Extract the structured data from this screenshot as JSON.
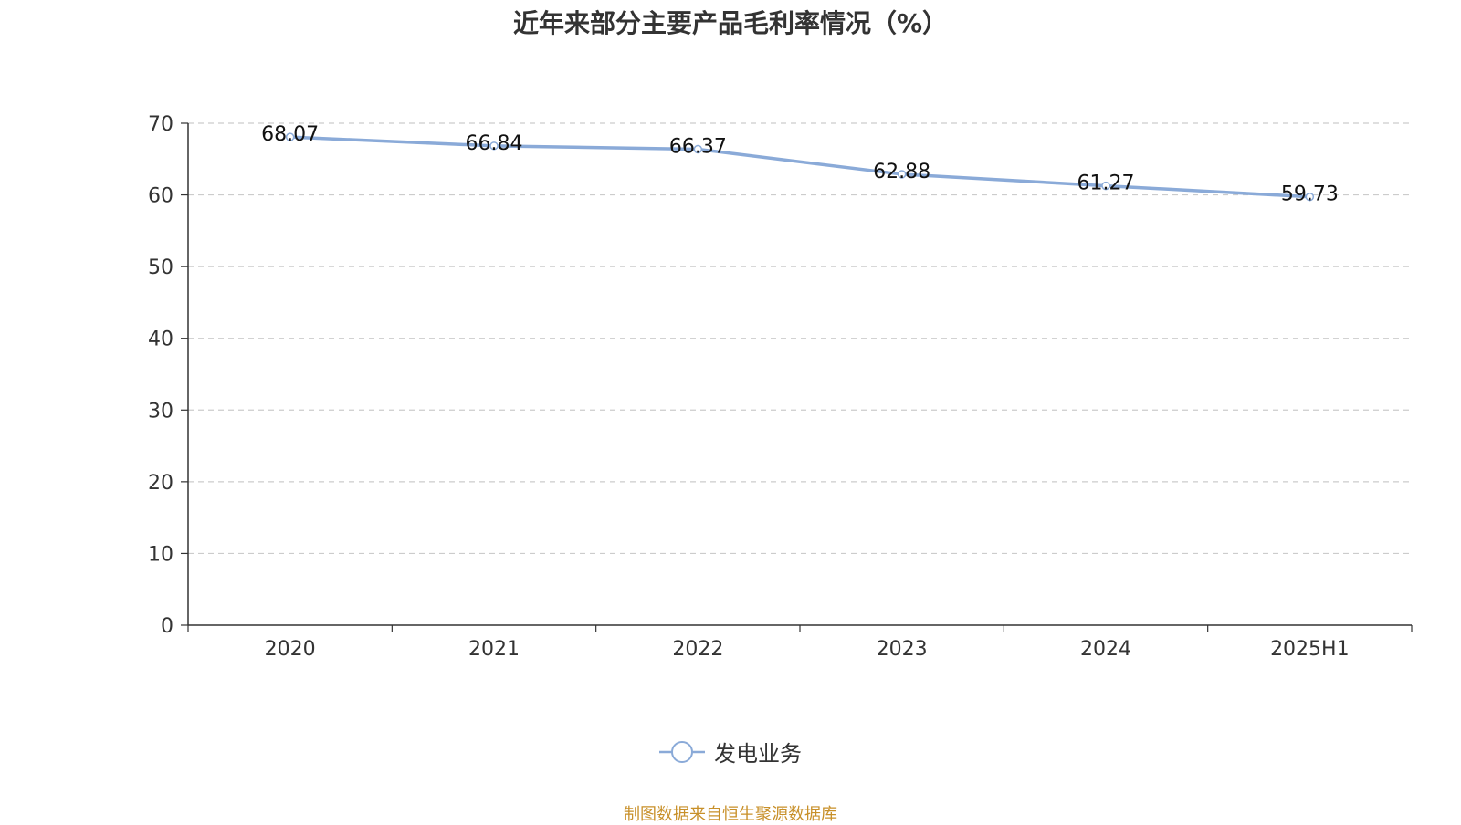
{
  "title": "近年来部分主要产品毛利率情况（%）",
  "source_note": "制图数据来自恒生聚源数据库",
  "colors": {
    "line": "#8aaad8",
    "axis": "#333333",
    "grid": "#cccccc",
    "source": "#c8902a"
  },
  "chart_data": {
    "type": "line",
    "title": "近年来部分主要产品毛利率情况（%）",
    "categories": [
      "2020",
      "2021",
      "2022",
      "2023",
      "2024",
      "2025H1"
    ],
    "series": [
      {
        "name": "发电业务",
        "values": [
          68.07,
          66.84,
          66.37,
          62.88,
          61.27,
          59.73
        ],
        "labels": [
          "68.07",
          "66.84",
          "66.37",
          "62.88",
          "61.27",
          "59.73"
        ]
      }
    ],
    "yticks": [
      "0",
      "10",
      "20",
      "30",
      "40",
      "50",
      "60",
      "70"
    ],
    "ylim": [
      0,
      70
    ],
    "grid": true,
    "legend": "bottom-center"
  }
}
